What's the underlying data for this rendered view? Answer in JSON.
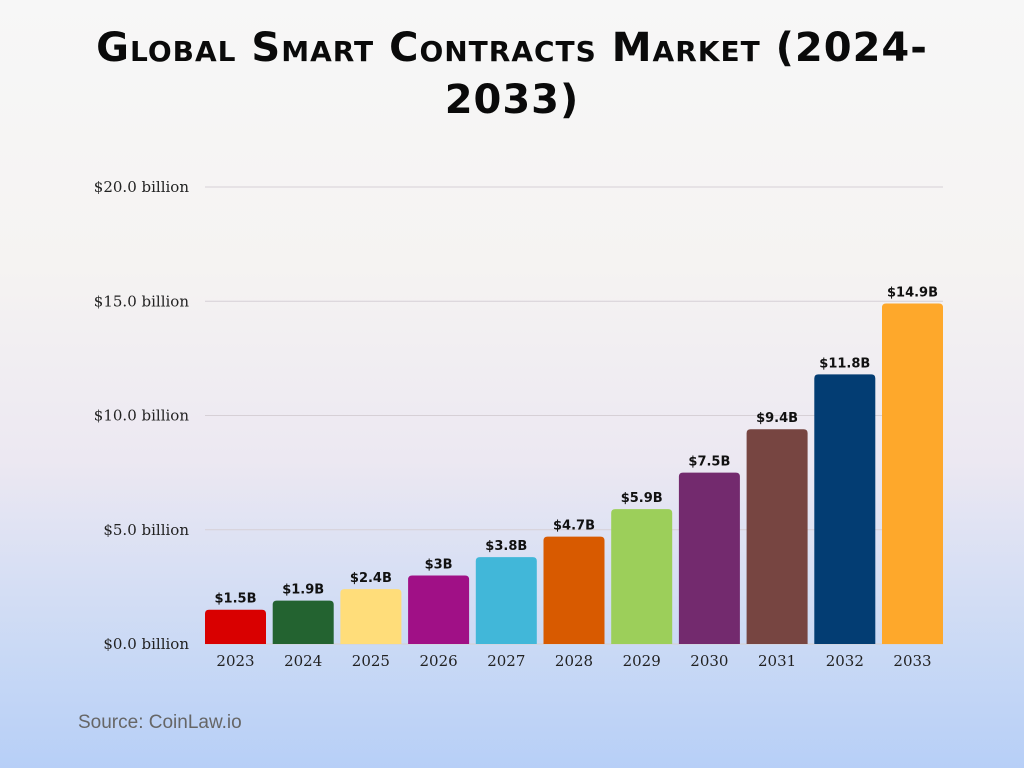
{
  "chart_data": {
    "type": "bar",
    "title": "Global Smart Contracts Market (2024-2033)",
    "categories": [
      "2023",
      "2024",
      "2025",
      "2026",
      "2027",
      "2028",
      "2029",
      "2030",
      "2031",
      "2032",
      "2033"
    ],
    "values": [
      1.5,
      1.9,
      2.4,
      3.0,
      3.8,
      4.7,
      5.9,
      7.5,
      9.4,
      11.8,
      14.9
    ],
    "data_labels": [
      "$1.5B",
      "$1.9B",
      "$2.4B",
      "$3B",
      "$3.8B",
      "$4.7B",
      "$5.9B",
      "$7.5B",
      "$9.4B",
      "$11.8B",
      "$14.9B"
    ],
    "colors": [
      "#d90000",
      "#236330",
      "#ffdd7a",
      "#a01086",
      "#41b7d9",
      "#d85a00",
      "#9ccf5a",
      "#732a6e",
      "#774541",
      "#033d73",
      "#fea82b"
    ],
    "yticks": [
      0,
      5,
      10,
      15,
      20
    ],
    "ytick_labels": [
      "$0.0 billion",
      "$5.0 billion",
      "$10.0 billion",
      "$15.0 billion",
      "$20.0 billion"
    ],
    "ylim": [
      0,
      20
    ],
    "xlabel": "",
    "ylabel": "",
    "grid": true
  },
  "source": "Source: CoinLaw.io"
}
